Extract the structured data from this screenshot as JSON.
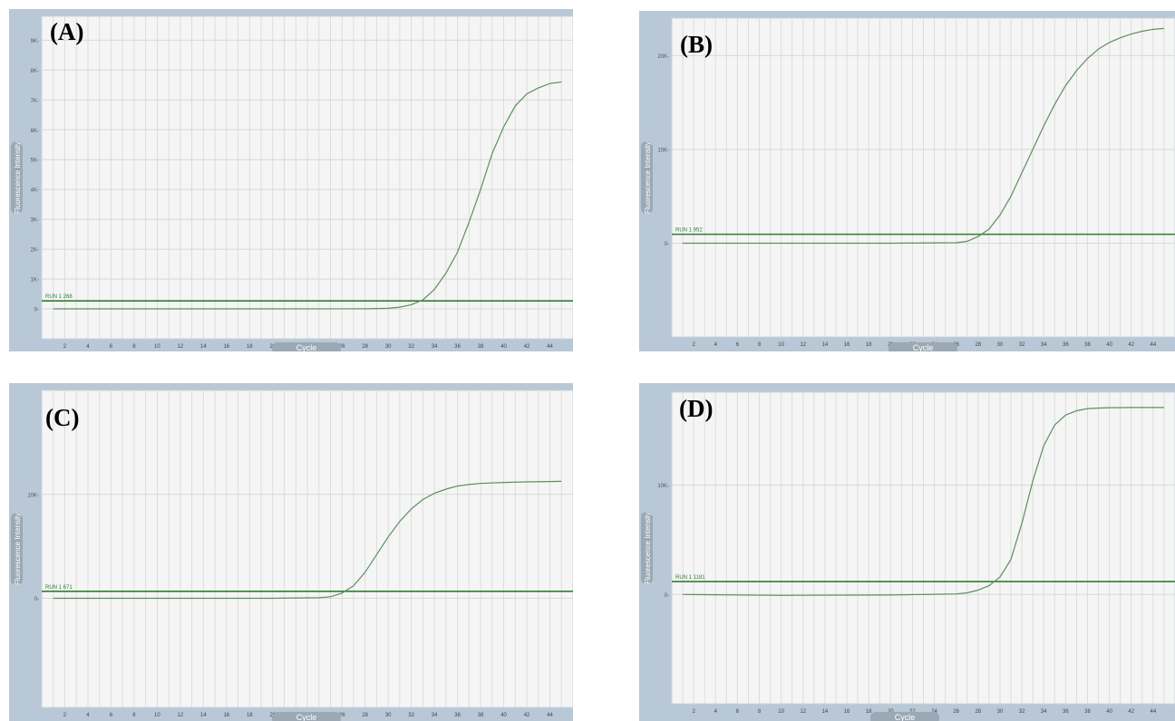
{
  "chart_data": [
    {
      "type": "line",
      "panel_label": "(A)",
      "ylabel": "Fluorescence Intensity",
      "xlabel": "Cycle",
      "x_ticks": [
        2,
        4,
        6,
        8,
        10,
        12,
        14,
        16,
        18,
        20,
        22,
        24,
        26,
        28,
        30,
        32,
        34,
        36,
        38,
        40,
        42,
        44
      ],
      "y_ticks": [
        0,
        1000,
        2000,
        3000,
        4000,
        5000,
        6000,
        7000,
        8000,
        9000
      ],
      "y_tick_labels": [
        "0",
        "1K",
        "2K",
        "3K",
        "4K",
        "5K",
        "6K",
        "7K",
        "8K",
        "9K"
      ],
      "xlim": [
        0,
        46
      ],
      "ylim": [
        -1000,
        9800
      ],
      "threshold": {
        "label": "RUN 1",
        "value": 268
      },
      "series": [
        {
          "x": [
            1,
            10,
            20,
            28,
            30,
            31,
            32,
            33,
            34,
            35,
            36,
            37,
            38,
            39,
            40,
            41,
            42,
            43,
            44,
            45
          ],
          "y": [
            0,
            0,
            0,
            5,
            20,
            60,
            140,
            300,
            650,
            1200,
            1900,
            2900,
            4000,
            5200,
            6100,
            6800,
            7200,
            7400,
            7550,
            7600
          ]
        }
      ],
      "color": "#5e8f5e",
      "threshold_color": "#2e7d32"
    },
    {
      "type": "line",
      "panel_label": "(B)",
      "ylabel": "Fluorescence Intensity",
      "xlabel": "Cycle",
      "x_ticks": [
        2,
        4,
        6,
        8,
        10,
        12,
        14,
        16,
        18,
        20,
        22,
        24,
        26,
        28,
        30,
        32,
        34,
        36,
        38,
        40,
        42,
        44
      ],
      "y_ticks": [
        0,
        10000,
        20000
      ],
      "y_tick_labels": [
        "0",
        "10K",
        "20K"
      ],
      "xlim": [
        0,
        46
      ],
      "ylim": [
        -10000,
        24000
      ],
      "threshold": {
        "label": "RUN 1",
        "value": 952
      },
      "series": [
        {
          "x": [
            1,
            10,
            20,
            26,
            27,
            28,
            29,
            30,
            31,
            32,
            33,
            34,
            35,
            36,
            37,
            38,
            39,
            40,
            41,
            42,
            43,
            44,
            45
          ],
          "y": [
            0,
            0,
            0,
            50,
            200,
            700,
            1500,
            3000,
            5000,
            7500,
            10000,
            12500,
            14800,
            16800,
            18400,
            19700,
            20700,
            21400,
            21900,
            22300,
            22600,
            22800,
            22900
          ]
        }
      ],
      "color": "#5e8f5e",
      "threshold_color": "#2e7d32"
    },
    {
      "type": "line",
      "panel_label": "(C)",
      "ylabel": "Fluorescence Intensity",
      "xlabel": "Cycle",
      "x_ticks": [
        2,
        4,
        6,
        8,
        10,
        12,
        14,
        16,
        18,
        20,
        22,
        24,
        26,
        28,
        30,
        32,
        34,
        36,
        38,
        40,
        42,
        44
      ],
      "y_ticks": [
        0,
        10000
      ],
      "y_tick_labels": [
        "0",
        "10K"
      ],
      "xlim": [
        0,
        46
      ],
      "ylim": [
        -10500,
        20000
      ],
      "threshold": {
        "label": "RUN 1",
        "value": 671
      },
      "series": [
        {
          "x": [
            1,
            10,
            20,
            24,
            25,
            26,
            27,
            28,
            29,
            30,
            31,
            32,
            33,
            34,
            35,
            36,
            37,
            38,
            40,
            42,
            44,
            45
          ],
          "y": [
            0,
            0,
            0,
            50,
            150,
            500,
            1200,
            2500,
            4200,
            5900,
            7400,
            8600,
            9500,
            10100,
            10500,
            10800,
            10950,
            11050,
            11150,
            11200,
            11230,
            11250
          ]
        }
      ],
      "color": "#5e8f5e",
      "threshold_color": "#2e7d32"
    },
    {
      "type": "line",
      "panel_label": "(D)",
      "ylabel": "Fluorescence Intensity",
      "xlabel": "Cycle",
      "x_ticks": [
        2,
        4,
        6,
        8,
        10,
        12,
        14,
        16,
        18,
        20,
        22,
        24,
        26,
        28,
        30,
        32,
        34,
        36,
        38,
        40,
        42,
        44
      ],
      "y_ticks": [
        0,
        10000
      ],
      "y_tick_labels": [
        "0",
        "10K"
      ],
      "xlim": [
        0,
        46
      ],
      "ylim": [
        -10000,
        18500
      ],
      "threshold": {
        "label": "RUN 1",
        "value": 1181
      },
      "series": [
        {
          "x": [
            1,
            10,
            20,
            26,
            27,
            28,
            29,
            30,
            31,
            32,
            33,
            34,
            35,
            36,
            37,
            38,
            39,
            40,
            42,
            44,
            45
          ],
          "y": [
            0,
            -80,
            -50,
            50,
            150,
            400,
            800,
            1600,
            3200,
            6500,
            10400,
            13600,
            15500,
            16400,
            16800,
            17000,
            17050,
            17080,
            17100,
            17100,
            17100
          ]
        }
      ],
      "color": "#5e8f5e",
      "threshold_color": "#2e7d32"
    }
  ]
}
